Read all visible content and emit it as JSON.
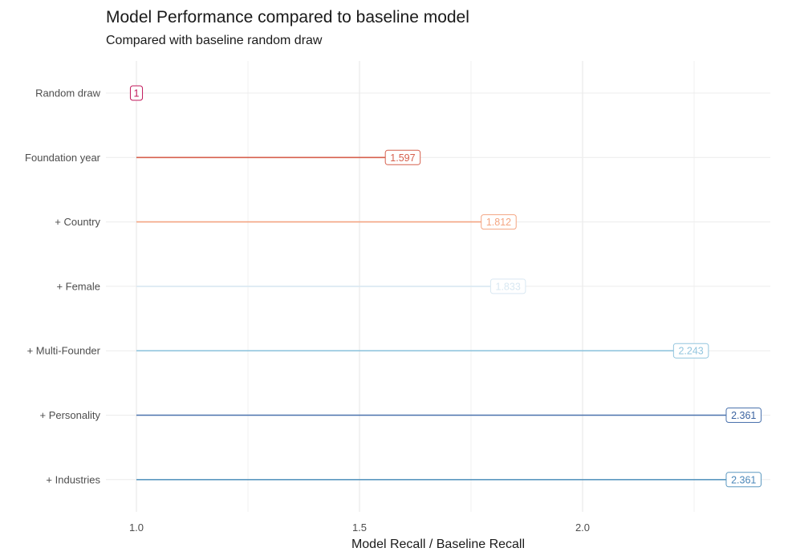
{
  "title": "Model Performance compared to baseline model",
  "subtitle": "Compared with baseline random draw",
  "chart_data": {
    "type": "bar",
    "orientation": "horizontal lollipop",
    "title": "Model Performance compared to baseline model",
    "subtitle": "Compared with baseline random draw",
    "xlabel": "Model Recall / Baseline Recall",
    "ylabel": "",
    "baseline": 1.0,
    "xlim": [
      0.98,
      2.42
    ],
    "xticks": [
      "1.0",
      "1.5",
      "2.0"
    ],
    "xtick_values": [
      1.0,
      1.5,
      2.0
    ],
    "grid": true,
    "categories": [
      "Random draw",
      "Foundation year",
      "+ Country",
      "+ Female",
      "+ Multi-Founder",
      "+ Personality",
      "+ Industries"
    ],
    "values": [
      1,
      1.597,
      1.812,
      1.833,
      2.243,
      2.361,
      2.361
    ],
    "labels": [
      "1",
      "1.597",
      "1.812",
      "1.833",
      "2.243",
      "2.361",
      "2.361"
    ],
    "colors": [
      "#c2185b",
      "#d6604d",
      "#f4a582",
      "#d9e8f2",
      "#92c5de",
      "#4a72ad",
      "#5b98c0"
    ],
    "label_colors": [
      "#c2185b",
      "#d6604d",
      "#f4a582",
      "#d9e8f2",
      "#92c5de",
      "#3a62a0",
      "#4a86b8"
    ]
  }
}
